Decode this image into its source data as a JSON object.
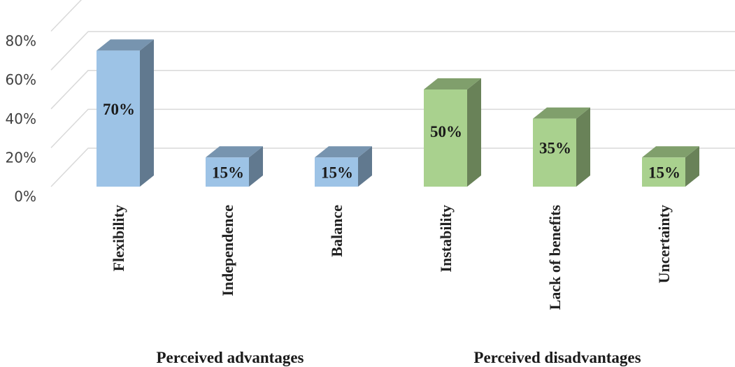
{
  "chart_data": {
    "type": "bar",
    "title": "",
    "xlabel": "",
    "ylabel": "",
    "ylim": [
      0,
      80
    ],
    "yticks": [
      "0%",
      "20%",
      "40%",
      "60%",
      "80%"
    ],
    "ytick_values": [
      0,
      20,
      40,
      60,
      80
    ],
    "grid": true,
    "legend": "none",
    "categories": [
      "Flexibility",
      "Independence",
      "Balance",
      "Instability",
      "Lack of benefits",
      "Uncertainty"
    ],
    "values": [
      70,
      15,
      15,
      50,
      35,
      15
    ],
    "data_labels": [
      "70%",
      "15%",
      "15%",
      "50%",
      "35%",
      "15%"
    ],
    "groups": [
      {
        "label": "Perceived advantages",
        "categories": [
          "Flexibility",
          "Independence",
          "Balance"
        ],
        "color": "#9DC3E6"
      },
      {
        "label": "Perceived disadvantages",
        "categories": [
          "Instability",
          "Lack of benefits",
          "Uncertainty"
        ],
        "color": "#A9D18E"
      }
    ]
  }
}
